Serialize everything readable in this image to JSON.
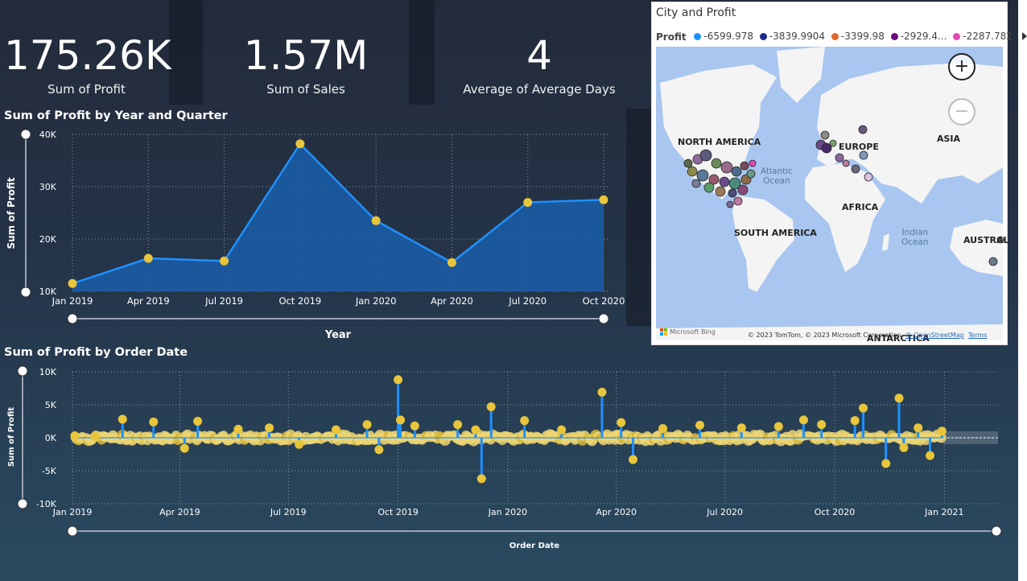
{
  "kpis": [
    {
      "value": "175.26K",
      "label": "Sum of Profit"
    },
    {
      "value": "1.57M",
      "label": "Sum of Sales"
    },
    {
      "value": "4",
      "label": "Average of Average Days"
    }
  ],
  "chart_data": [
    {
      "type": "area",
      "title": "Sum of Profit by Year and Quarter",
      "xlabel": "Year",
      "ylabel": "Sum of Profit",
      "categories": [
        "Jan 2019",
        "Apr 2019",
        "Jul 2019",
        "Oct 2019",
        "Jan 2020",
        "Apr 2020",
        "Jul 2020",
        "Oct 2020"
      ],
      "values": [
        11500,
        16300,
        15800,
        38200,
        23500,
        15500,
        27000,
        27500
      ],
      "ylim": [
        10000,
        40000
      ],
      "yticks": [
        "10K",
        "20K",
        "30K",
        "40K"
      ],
      "ytick_values": [
        10000,
        20000,
        30000,
        40000
      ],
      "grid": true,
      "colors": {
        "line": "#1e90ff",
        "fill": "#1b5aa0",
        "marker": "#e8c53a"
      }
    },
    {
      "type": "line",
      "title": "Sum of Profit by Order Date",
      "xlabel": "Order Date",
      "ylabel": "Sum of Profit",
      "x_range": [
        "2019-01-01",
        "2021-02-15"
      ],
      "xticks": [
        {
          "date": "2019-01-01",
          "label": "Jan 2019"
        },
        {
          "date": "2019-04-01",
          "label": "Apr 2019"
        },
        {
          "date": "2019-07-01",
          "label": "Jul 2019"
        },
        {
          "date": "2019-10-01",
          "label": "Oct 2019"
        },
        {
          "date": "2020-01-01",
          "label": "Jan 2020"
        },
        {
          "date": "2020-04-01",
          "label": "Apr 2020"
        },
        {
          "date": "2020-07-01",
          "label": "Jul 2020"
        },
        {
          "date": "2020-10-01",
          "label": "Oct 2020"
        },
        {
          "date": "2021-01-01",
          "label": "Jan 2021"
        }
      ],
      "ylim": [
        -10000,
        10000
      ],
      "yticks": [
        "-10K",
        "-5K",
        "0K",
        "5K",
        "10K"
      ],
      "ytick_values": [
        -10000,
        -5000,
        0,
        5000,
        10000
      ],
      "grid": true,
      "colors": {
        "line": "#1e90ff",
        "marker": "#ecd572"
      },
      "points": [
        {
          "date": "2019-01-03",
          "value": 300
        },
        {
          "date": "2019-01-20",
          "value": 200
        },
        {
          "date": "2019-02-12",
          "value": 2800
        },
        {
          "date": "2019-03-10",
          "value": 2400
        },
        {
          "date": "2019-04-05",
          "value": -1600
        },
        {
          "date": "2019-04-16",
          "value": 2500
        },
        {
          "date": "2019-05-20",
          "value": 1300
        },
        {
          "date": "2019-06-15",
          "value": 1500
        },
        {
          "date": "2019-07-10",
          "value": -1000
        },
        {
          "date": "2019-08-10",
          "value": 1200
        },
        {
          "date": "2019-09-05",
          "value": 2000
        },
        {
          "date": "2019-09-15",
          "value": -1800
        },
        {
          "date": "2019-10-01",
          "value": 8800
        },
        {
          "date": "2019-10-03",
          "value": 2700
        },
        {
          "date": "2019-10-15",
          "value": 1800
        },
        {
          "date": "2019-11-20",
          "value": 2000
        },
        {
          "date": "2019-12-05",
          "value": 1200
        },
        {
          "date": "2019-12-10",
          "value": -6200
        },
        {
          "date": "2019-12-18",
          "value": 4700
        },
        {
          "date": "2020-01-15",
          "value": 2600
        },
        {
          "date": "2020-02-15",
          "value": 1200
        },
        {
          "date": "2020-03-20",
          "value": 6900
        },
        {
          "date": "2020-04-05",
          "value": 2300
        },
        {
          "date": "2020-04-15",
          "value": -3300
        },
        {
          "date": "2020-05-10",
          "value": 1400
        },
        {
          "date": "2020-06-10",
          "value": 1900
        },
        {
          "date": "2020-07-15",
          "value": 1500
        },
        {
          "date": "2020-08-15",
          "value": 1700
        },
        {
          "date": "2020-09-05",
          "value": 2700
        },
        {
          "date": "2020-09-20",
          "value": 2000
        },
        {
          "date": "2020-10-18",
          "value": 2600
        },
        {
          "date": "2020-10-25",
          "value": 4500
        },
        {
          "date": "2020-11-13",
          "value": -3900
        },
        {
          "date": "2020-11-24",
          "value": 6000
        },
        {
          "date": "2020-11-28",
          "value": -1500
        },
        {
          "date": "2020-12-10",
          "value": 1500
        },
        {
          "date": "2020-12-20",
          "value": -2700
        },
        {
          "date": "2020-12-30",
          "value": 1000
        }
      ]
    },
    {
      "type": "map",
      "title": "City and Profit",
      "legend_title": "Profit",
      "legend": [
        {
          "label": "-6599.978",
          "color": "#1e90ff"
        },
        {
          "label": "-3839.9904",
          "color": "#1a2a8a"
        },
        {
          "label": "-3399.98",
          "color": "#e06a2a"
        },
        {
          "label": "-2929.4...",
          "color": "#6a0a7a"
        },
        {
          "label": "-2287.782",
          "color": "#e04ab0"
        }
      ],
      "region_labels": [
        "NORTH AMERICA",
        "EUROPE",
        "ASIA",
        "AFRICA",
        "SOUTH AMERICA",
        "AUSTRAL",
        "ANTARCTICA"
      ],
      "ocean_labels": [
        "Atlantic\nOcean",
        "Indian\nOcean"
      ],
      "attribution": "© 2023 TomTom, © 2023 Microsoft Corporation, ",
      "attribution_links": [
        "© OpenStreetMap",
        "Terms"
      ],
      "bing": "Microsoft Bing"
    }
  ]
}
